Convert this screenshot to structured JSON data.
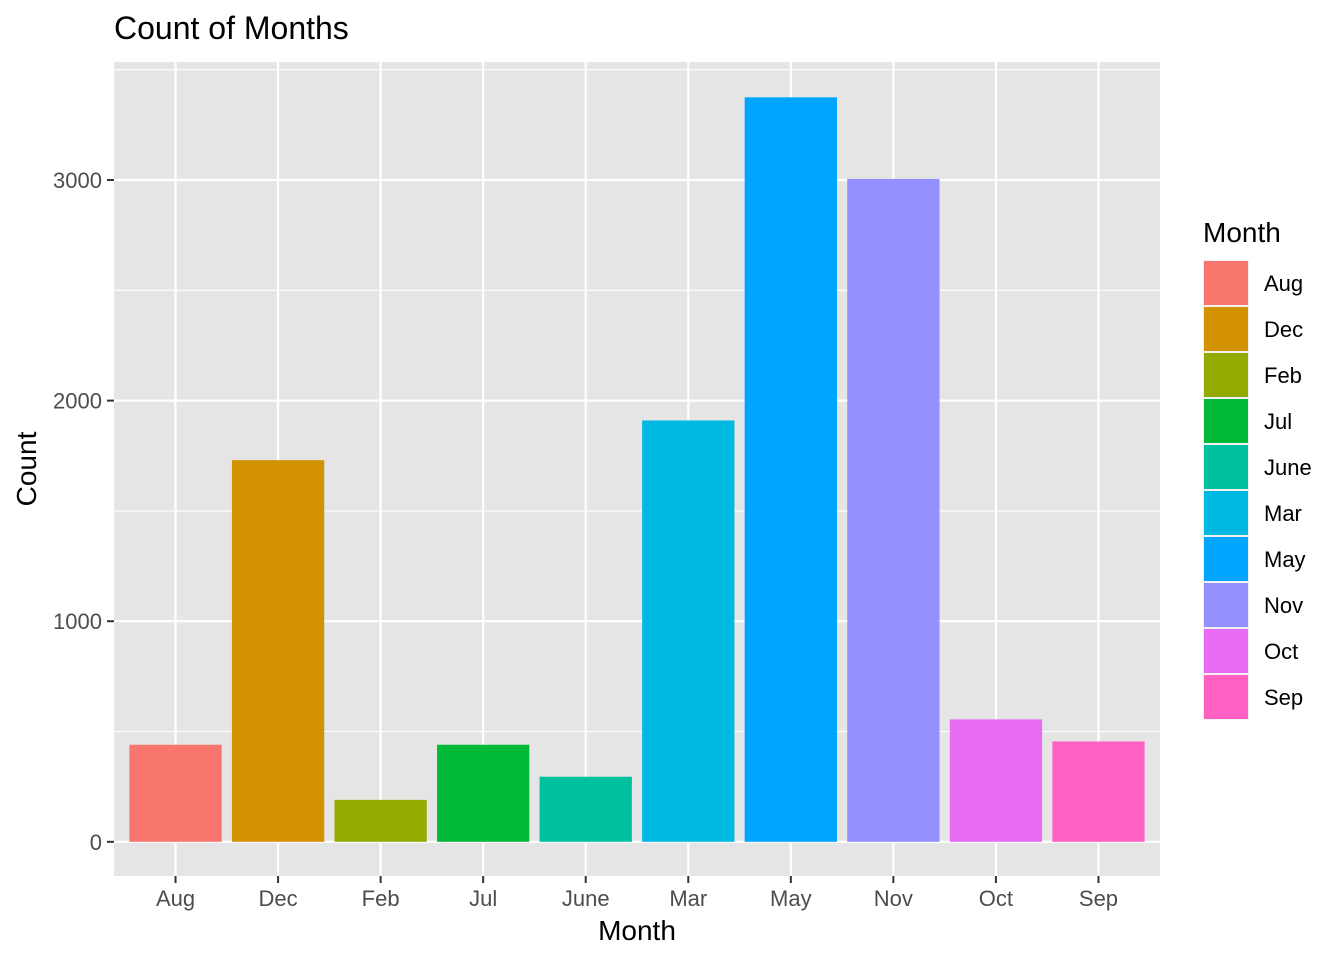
{
  "chart_data": {
    "type": "bar",
    "title": "Count of Months",
    "xlabel": "Month",
    "ylabel": "Count",
    "categories": [
      "Aug",
      "Dec",
      "Feb",
      "Jul",
      "June",
      "Mar",
      "May",
      "Nov",
      "Oct",
      "Sep"
    ],
    "values": [
      440,
      1730,
      190,
      440,
      295,
      1910,
      3375,
      3005,
      555,
      455
    ],
    "colors": [
      "#F8766D",
      "#D39200",
      "#93AA00",
      "#00BA38",
      "#00C19F",
      "#00B9E3",
      "#00A5FF",
      "#9590FF",
      "#E76BF3",
      "#FF61C3"
    ],
    "ylim": [
      -155,
      3535
    ],
    "yticks": [
      0,
      1000,
      2000,
      3000
    ],
    "grid": true,
    "background": "#E5E5E5",
    "legend": {
      "title": "Month",
      "position": "right",
      "entries": [
        "Aug",
        "Dec",
        "Feb",
        "Jul",
        "June",
        "Mar",
        "May",
        "Nov",
        "Oct",
        "Sep"
      ]
    }
  }
}
